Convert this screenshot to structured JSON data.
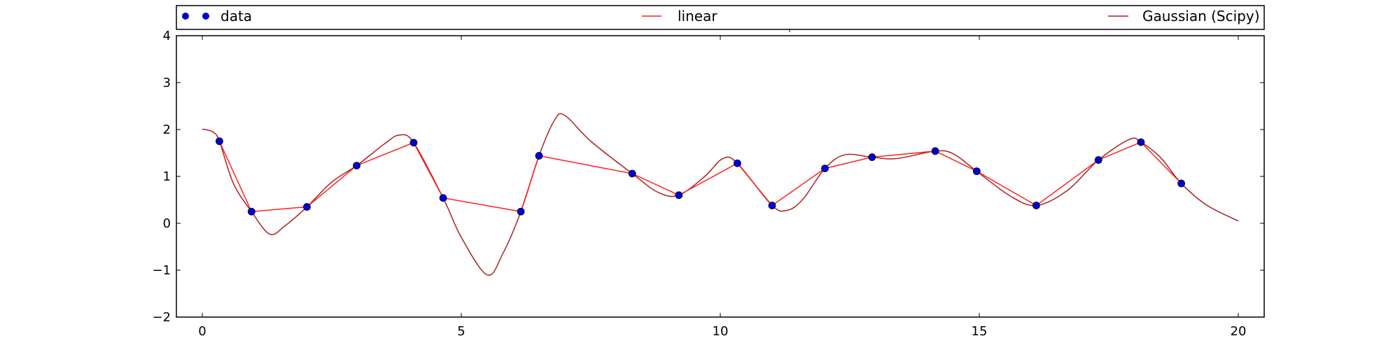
{
  "chart_data": {
    "type": "line",
    "xlim": [
      -0.5,
      20.5
    ],
    "ylim": [
      -2,
      4
    ],
    "x_ticks": [
      0,
      5,
      10,
      15,
      20
    ],
    "x_tick_labels": [
      "0",
      "5",
      "10",
      "15",
      "20"
    ],
    "y_ticks": [
      -2,
      -1,
      0,
      1,
      2,
      3,
      4
    ],
    "y_tick_labels": [
      "−2",
      "−1",
      "0",
      "1",
      "2",
      "3",
      "4"
    ],
    "grid": false,
    "legend_position": "top, above plot",
    "legend": [
      {
        "label": "data",
        "marker": "circle",
        "color": "#0000cc"
      },
      {
        "label": "linear",
        "marker": "line",
        "color": "#ff2222"
      },
      {
        "label": "Gaussian (Scipy)",
        "marker": "line",
        "color": "#aa2222"
      }
    ],
    "series": [
      {
        "name": "data",
        "style": "points",
        "color": "#0000cc",
        "x": [
          0.33,
          0.95,
          2.02,
          2.98,
          4.08,
          4.65,
          6.15,
          6.5,
          8.3,
          9.2,
          10.33,
          11.0,
          12.02,
          12.93,
          14.15,
          14.95,
          16.1,
          17.3,
          18.12,
          18.9
        ],
        "y": [
          1.75,
          0.25,
          0.35,
          1.23,
          1.72,
          0.54,
          0.25,
          1.44,
          1.06,
          0.6,
          1.28,
          0.38,
          1.17,
          1.41,
          1.54,
          1.11,
          0.38,
          1.35,
          1.73,
          0.85
        ]
      },
      {
        "name": "linear",
        "style": "line",
        "color": "#ff2222",
        "x": [
          0.33,
          0.95,
          2.02,
          2.98,
          4.08,
          4.65,
          6.15,
          6.5,
          8.3,
          9.2,
          10.33,
          11.0,
          12.02,
          12.93,
          14.15,
          14.95,
          16.1,
          17.3,
          18.12,
          18.9
        ],
        "y": [
          1.75,
          0.25,
          0.35,
          1.23,
          1.72,
          0.54,
          0.25,
          1.44,
          1.06,
          0.6,
          1.28,
          0.38,
          1.17,
          1.41,
          1.54,
          1.11,
          0.38,
          1.35,
          1.73,
          0.85
        ]
      },
      {
        "name": "Gaussian (Scipy)",
        "style": "smooth",
        "color": "#aa2222",
        "x": [
          0.0,
          0.2,
          0.33,
          0.6,
          0.95,
          1.3,
          1.6,
          2.02,
          2.5,
          2.98,
          3.5,
          3.8,
          4.08,
          4.65,
          5.0,
          5.5,
          5.8,
          6.15,
          6.5,
          6.8,
          7.0,
          7.5,
          8.3,
          8.8,
          9.2,
          9.7,
          10.05,
          10.33,
          11.0,
          11.3,
          11.6,
          12.02,
          12.4,
          12.93,
          13.4,
          14.15,
          14.5,
          14.95,
          15.6,
          16.1,
          16.7,
          17.3,
          17.9,
          18.12,
          18.5,
          18.9,
          19.4,
          20.0
        ],
        "y": [
          2.01,
          1.95,
          1.75,
          0.85,
          0.25,
          -0.23,
          -0.05,
          0.35,
          0.88,
          1.23,
          1.68,
          1.88,
          1.72,
          0.54,
          -0.3,
          -1.1,
          -0.65,
          0.25,
          1.44,
          2.2,
          2.3,
          1.75,
          1.06,
          0.66,
          0.6,
          1.0,
          1.38,
          1.28,
          0.38,
          0.28,
          0.52,
          1.17,
          1.46,
          1.41,
          1.38,
          1.54,
          1.48,
          1.11,
          0.58,
          0.38,
          0.7,
          1.35,
          1.79,
          1.73,
          1.4,
          0.85,
          0.38,
          0.05
        ]
      }
    ]
  }
}
